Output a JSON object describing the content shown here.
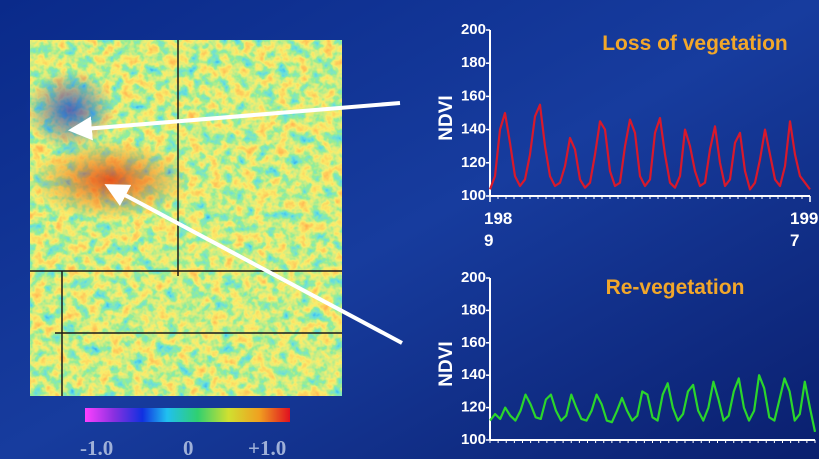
{
  "map": {
    "legend_labels": [
      "-1.0",
      "0",
      "+1.0"
    ]
  },
  "chart_data": [
    {
      "type": "line",
      "title": "Loss of vegetation",
      "y_label": "NDVI",
      "x": [
        1989,
        1989.125,
        1989.25,
        1989.375,
        1989.5,
        1989.625,
        1989.75,
        1989.875,
        1990,
        1990.125,
        1990.25,
        1990.375,
        1990.5,
        1990.625,
        1990.75,
        1990.875,
        1991,
        1991.125,
        1991.25,
        1991.375,
        1991.5,
        1991.625,
        1991.75,
        1991.875,
        1992,
        1992.125,
        1992.25,
        1992.375,
        1992.5,
        1992.625,
        1992.75,
        1992.875,
        1993,
        1993.125,
        1993.25,
        1993.375,
        1993.5,
        1993.625,
        1993.75,
        1993.875,
        1994,
        1994.125,
        1994.25,
        1994.375,
        1994.5,
        1994.625,
        1994.75,
        1994.875,
        1995,
        1995.125,
        1995.25,
        1995.375,
        1995.5,
        1995.625,
        1995.75,
        1995.875,
        1996,
        1996.125,
        1996.25,
        1996.375,
        1996.5,
        1996.625,
        1996.75,
        1996.875,
        1997
      ],
      "series": [
        {
          "color": "#d8192b",
          "values": [
            104,
            112,
            140,
            150,
            132,
            112,
            106,
            110,
            125,
            148,
            155,
            130,
            112,
            106,
            108,
            118,
            135,
            128,
            110,
            105,
            108,
            125,
            145,
            140,
            115,
            106,
            108,
            130,
            146,
            138,
            112,
            106,
            110,
            138,
            147,
            125,
            108,
            105,
            112,
            140,
            130,
            115,
            106,
            108,
            128,
            142,
            120,
            106,
            110,
            132,
            138,
            115,
            104,
            108,
            122,
            140,
            125,
            110,
            106,
            118,
            145,
            125,
            112,
            108,
            104
          ]
        }
      ],
      "xlim": [
        1989,
        1997
      ],
      "xticks": [
        1989,
        1997
      ],
      "ylim": [
        100,
        200
      ],
      "yticks": [
        100,
        120,
        140,
        160,
        180,
        200
      ]
    },
    {
      "type": "line",
      "title": "Re-vegetation",
      "y_label": "NDVI",
      "x": [
        1989,
        1989.125,
        1989.25,
        1989.375,
        1989.5,
        1989.625,
        1989.75,
        1989.875,
        1990,
        1990.125,
        1990.25,
        1990.375,
        1990.5,
        1990.625,
        1990.75,
        1990.875,
        1991,
        1991.125,
        1991.25,
        1991.375,
        1991.5,
        1991.625,
        1991.75,
        1991.875,
        1992,
        1992.125,
        1992.25,
        1992.375,
        1992.5,
        1992.625,
        1992.75,
        1992.875,
        1993,
        1993.125,
        1993.25,
        1993.375,
        1993.5,
        1993.625,
        1993.75,
        1993.875,
        1994,
        1994.125,
        1994.25,
        1994.375,
        1994.5,
        1994.625,
        1994.75,
        1994.875,
        1995,
        1995.125,
        1995.25,
        1995.375,
        1995.5,
        1995.625,
        1995.75,
        1995.875,
        1996,
        1996.125,
        1996.25,
        1996.375,
        1996.5,
        1996.625,
        1996.75,
        1996.875,
        1997
      ],
      "series": [
        {
          "color": "#2bd62b",
          "values": [
            112,
            116,
            113,
            120,
            115,
            112,
            118,
            128,
            122,
            114,
            113,
            125,
            128,
            118,
            112,
            115,
            128,
            120,
            113,
            112,
            118,
            128,
            122,
            112,
            111,
            118,
            126,
            118,
            112,
            115,
            130,
            128,
            114,
            112,
            128,
            135,
            120,
            112,
            116,
            130,
            134,
            118,
            112,
            120,
            136,
            125,
            112,
            115,
            130,
            138,
            120,
            112,
            118,
            140,
            132,
            114,
            112,
            125,
            138,
            130,
            112,
            116,
            136,
            120,
            105
          ]
        }
      ],
      "xlim": [
        1989,
        1997
      ],
      "ylim": [
        100,
        200
      ],
      "yticks": [
        100,
        120,
        140,
        160,
        180,
        200
      ]
    }
  ]
}
